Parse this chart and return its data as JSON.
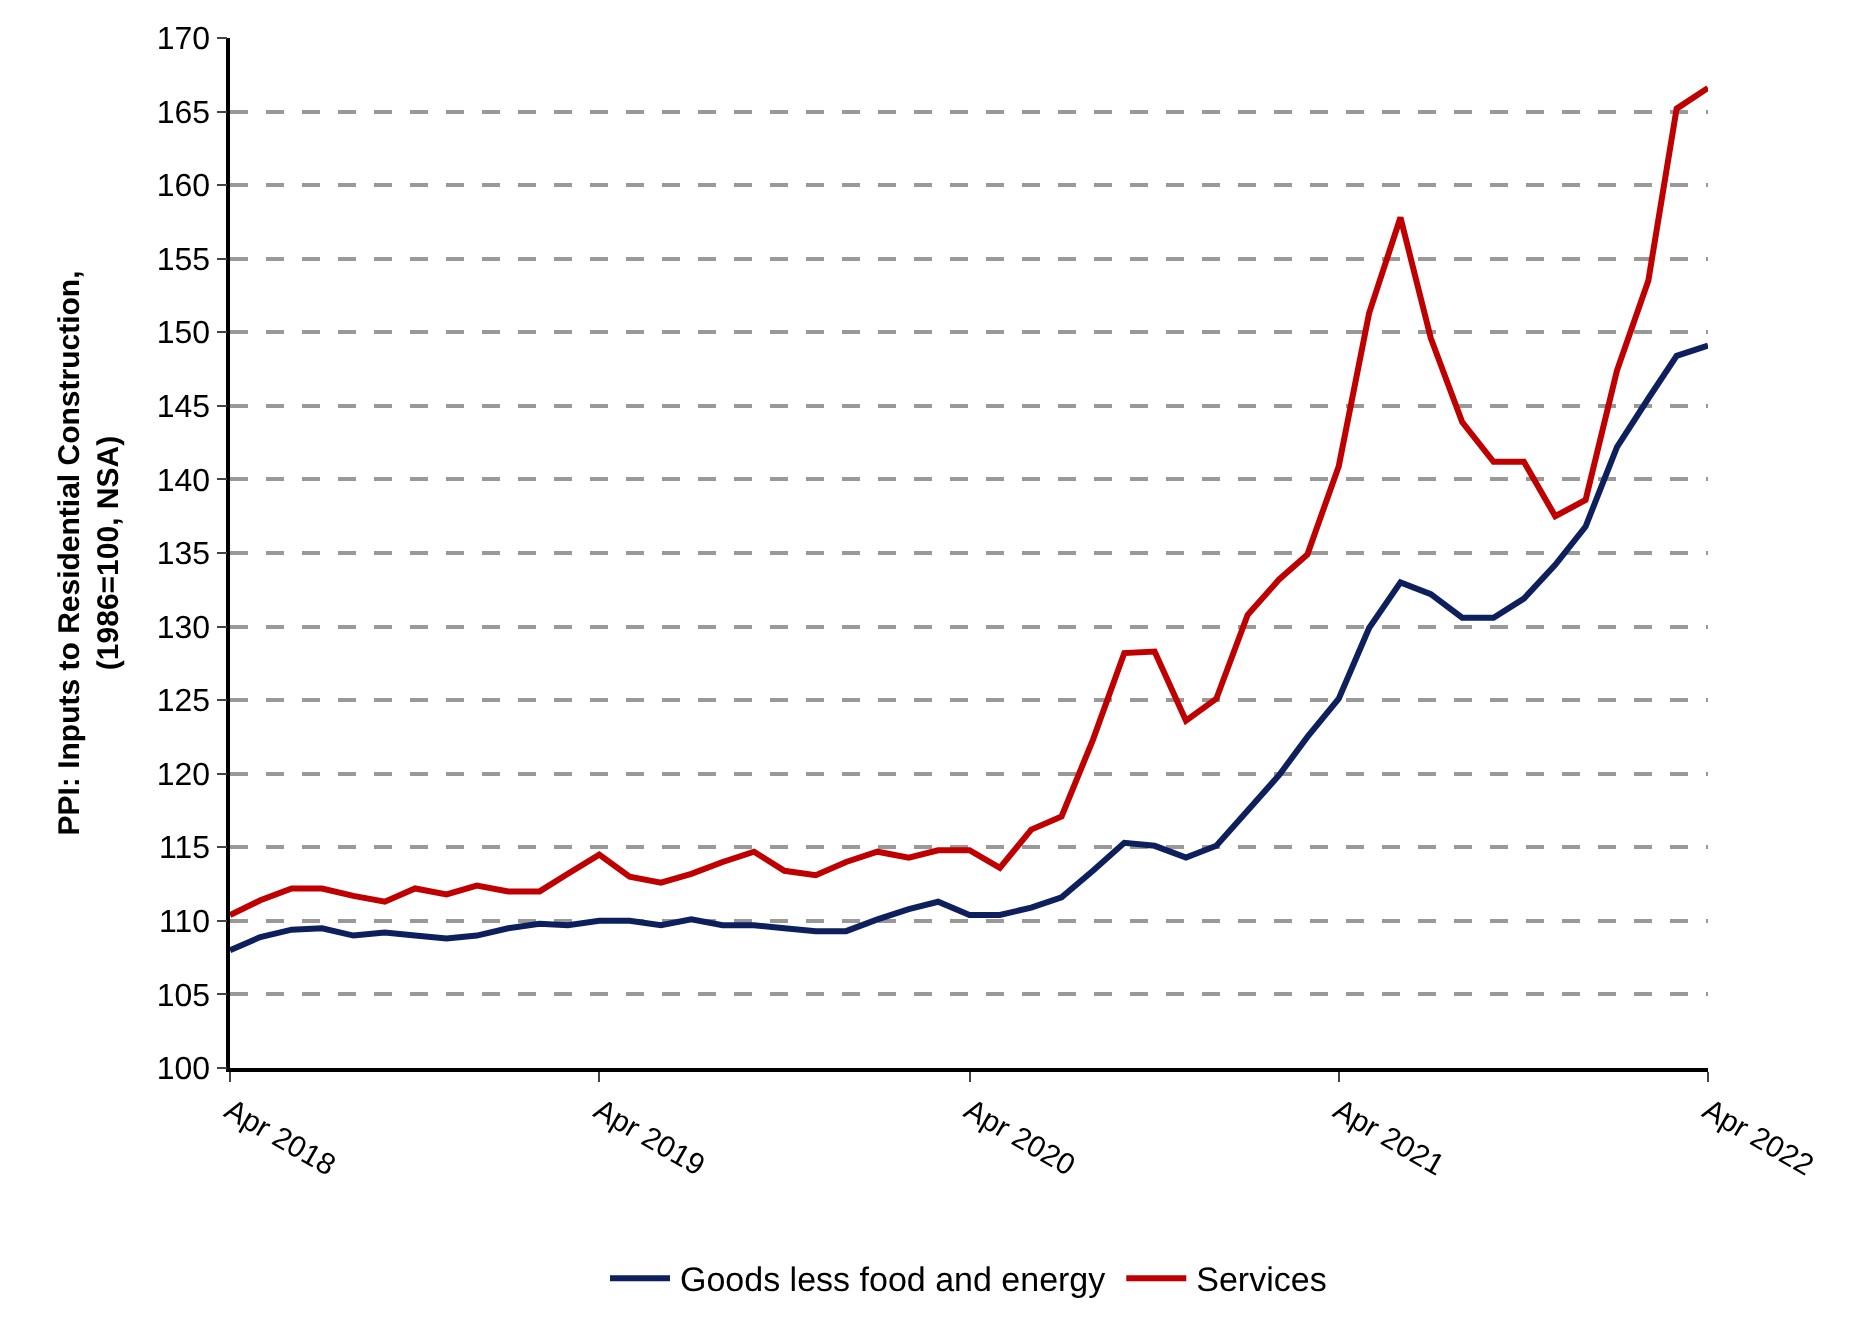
{
  "chart_data": {
    "type": "line",
    "ylabel": "PPI: Inputs to Residential Construction,\n(1986=100, NSA)",
    "x": [
      "2018-04",
      "2018-05",
      "2018-06",
      "2018-07",
      "2018-08",
      "2018-09",
      "2018-10",
      "2018-11",
      "2018-12",
      "2019-01",
      "2019-02",
      "2019-03",
      "2019-04",
      "2019-05",
      "2019-06",
      "2019-07",
      "2019-08",
      "2019-09",
      "2019-10",
      "2019-11",
      "2019-12",
      "2020-01",
      "2020-02",
      "2020-03",
      "2020-04",
      "2020-05",
      "2020-06",
      "2020-07",
      "2020-08",
      "2020-09",
      "2020-10",
      "2020-11",
      "2020-12",
      "2021-01",
      "2021-02",
      "2021-03",
      "2021-04",
      "2021-05",
      "2021-06",
      "2021-07",
      "2021-08",
      "2021-09",
      "2021-10",
      "2021-11",
      "2021-12",
      "2022-01",
      "2022-02",
      "2022-03",
      "2022-04"
    ],
    "series": [
      {
        "name": "Goods less food and energy",
        "color": "#0d1f5c",
        "values": [
          108.0,
          108.9,
          109.4,
          109.5,
          109.0,
          109.2,
          109.0,
          108.8,
          109.0,
          109.5,
          109.8,
          109.7,
          110.0,
          110.0,
          109.7,
          110.1,
          109.7,
          109.7,
          109.5,
          109.3,
          109.3,
          110.1,
          110.8,
          111.3,
          110.4,
          110.4,
          110.9,
          111.6,
          113.4,
          115.3,
          115.1,
          114.3,
          115.1,
          117.5,
          119.9,
          122.5,
          125.1,
          129.9,
          133.0,
          132.2,
          130.6,
          130.6,
          131.9,
          134.2,
          136.8,
          142.2,
          145.5,
          148.4,
          149.1
        ]
      },
      {
        "name": "Services",
        "color": "#c00000",
        "values": [
          110.4,
          111.4,
          112.2,
          112.2,
          111.7,
          111.3,
          112.2,
          111.8,
          112.4,
          112.0,
          112.0,
          113.2,
          114.5,
          113.0,
          112.6,
          113.2,
          114.0,
          114.7,
          113.4,
          113.1,
          114.0,
          114.7,
          114.3,
          114.8,
          114.8,
          113.6,
          116.2,
          117.1,
          122.3,
          128.2,
          128.3,
          123.6,
          125.1,
          130.8,
          133.2,
          134.9,
          140.9,
          151.3,
          157.8,
          149.6,
          143.9,
          141.2,
          141.2,
          137.5,
          138.6,
          147.4,
          153.5,
          165.2,
          166.6
        ]
      }
    ],
    "xlim": [
      "2018-04",
      "2022-04"
    ],
    "xticks": [
      {
        "value": "2018-04",
        "label": "Apr 2018"
      },
      {
        "value": "2019-04",
        "label": "Apr 2019"
      },
      {
        "value": "2020-04",
        "label": "Apr 2020"
      },
      {
        "value": "2021-04",
        "label": "Apr 2021"
      },
      {
        "value": "2022-04",
        "label": "Apr 2022"
      }
    ],
    "ylim": [
      100,
      170
    ],
    "yticks": [
      100,
      105,
      110,
      115,
      120,
      125,
      130,
      135,
      140,
      145,
      150,
      155,
      160,
      165,
      170
    ],
    "grid": "y",
    "legend": "bottom",
    "marker": "none",
    "line_style": "solid"
  }
}
